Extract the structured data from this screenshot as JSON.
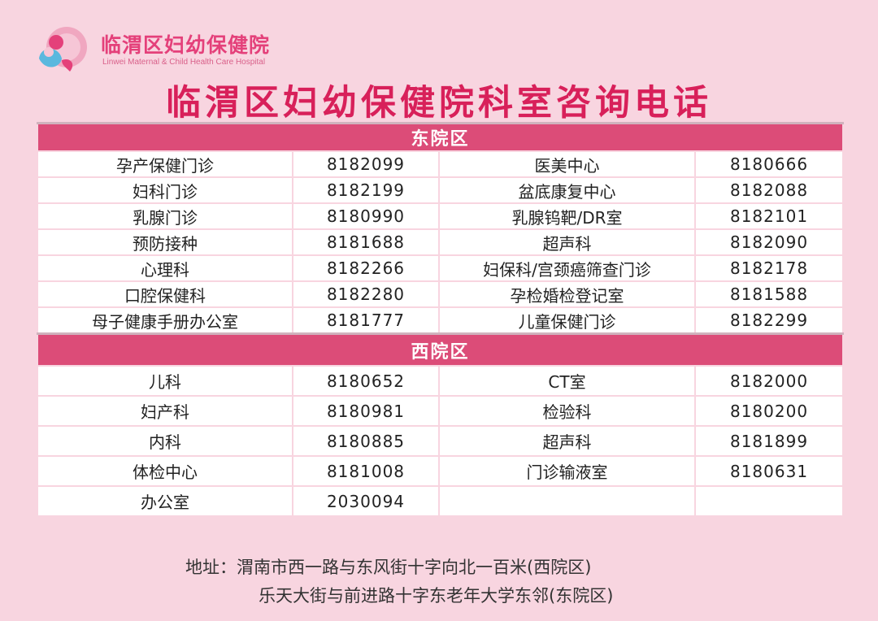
{
  "header": {
    "logo_cn": "临渭区妇幼保健院",
    "logo_en": "Linwei Maternal & Child Health  Care Hospital",
    "title": "临渭区妇幼保健院科室咨询电话"
  },
  "colors": {
    "background": "#f8d5e0",
    "accent": "#dc4c78",
    "title": "#d8205a"
  },
  "east": {
    "label": "东院区",
    "rows": [
      [
        "孕产保健门诊",
        "8182099",
        "医美中心",
        "8180666"
      ],
      [
        "妇科门诊",
        "8182199",
        "盆底康复中心",
        "8182088"
      ],
      [
        "乳腺门诊",
        "8180990",
        "乳腺钨靶/DR室",
        "8182101"
      ],
      [
        "预防接种",
        "8181688",
        "超声科",
        "8182090"
      ],
      [
        "心理科",
        "8182266",
        "妇保科/宫颈癌筛查门诊",
        "8182178"
      ],
      [
        "口腔保健科",
        "8182280",
        "孕检婚检登记室",
        "8181588"
      ],
      [
        "母子健康手册办公室",
        "8181777",
        "儿童保健门诊",
        "8182299"
      ]
    ]
  },
  "west": {
    "label": "西院区",
    "rows": [
      [
        "儿科",
        "8180652",
        "CT室",
        "8182000"
      ],
      [
        "妇产科",
        "8180981",
        "检验科",
        "8180200"
      ],
      [
        "内科",
        "8180885",
        "超声科",
        "8181899"
      ],
      [
        "体检中心",
        "8181008",
        "门诊输液室",
        "8180631"
      ],
      [
        "办公室",
        "2030094",
        "",
        ""
      ]
    ]
  },
  "address": {
    "line1": "地址：渭南市西一路与东风街十字向北一百米(西院区)",
    "line2": "乐天大街与前进路十字东老年大学东邻(东院区)"
  }
}
